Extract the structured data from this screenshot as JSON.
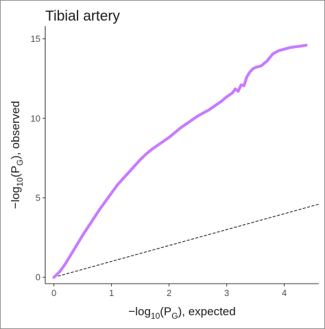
{
  "chart_data": {
    "type": "line",
    "title": "Tibial artery",
    "xlabel": {
      "prefix": "−log",
      "sub": "10",
      "mid": "(P",
      "sub2": "G",
      "suffix": "), expected"
    },
    "ylabel": {
      "prefix": "−log",
      "sub": "10",
      "mid": "(P",
      "sub2": "G",
      "suffix": "), observed"
    },
    "xlim": [
      -0.15,
      4.6
    ],
    "ylim": [
      -0.4,
      15.8
    ],
    "x_ticks": [
      0,
      1,
      2,
      3,
      4
    ],
    "y_ticks": [
      0,
      5,
      10,
      15
    ],
    "grid": false,
    "series": [
      {
        "color": "#c77cff",
        "style": "solid",
        "x": [
          0,
          0.1,
          0.2,
          0.3,
          0.4,
          0.5,
          0.6,
          0.7,
          0.8,
          0.9,
          1.0,
          1.1,
          1.2,
          1.3,
          1.4,
          1.5,
          1.6,
          1.7,
          1.8,
          1.9,
          2.0,
          2.1,
          2.2,
          2.3,
          2.4,
          2.5,
          2.6,
          2.7,
          2.8,
          2.9,
          3.0,
          3.1,
          3.15,
          3.2,
          3.25,
          3.3,
          3.35,
          3.4,
          3.45,
          3.5,
          3.6,
          3.7,
          3.8,
          3.85,
          3.9,
          4.0,
          4.1,
          4.2,
          4.3,
          4.38
        ],
        "y": [
          0,
          0.35,
          0.85,
          1.45,
          2.05,
          2.65,
          3.2,
          3.75,
          4.3,
          4.8,
          5.3,
          5.8,
          6.2,
          6.6,
          7.0,
          7.4,
          7.75,
          8.05,
          8.3,
          8.55,
          8.8,
          9.1,
          9.4,
          9.65,
          9.9,
          10.15,
          10.35,
          10.55,
          10.8,
          11.05,
          11.35,
          11.6,
          11.85,
          11.7,
          12.1,
          12.05,
          12.6,
          12.9,
          13.1,
          13.2,
          13.3,
          13.6,
          14.05,
          14.15,
          14.25,
          14.35,
          14.45,
          14.5,
          14.55,
          14.6
        ]
      },
      {
        "color": "#1a1a1a",
        "style": "dashed",
        "x": [
          0,
          4.6
        ],
        "y": [
          0,
          4.6
        ]
      }
    ]
  }
}
